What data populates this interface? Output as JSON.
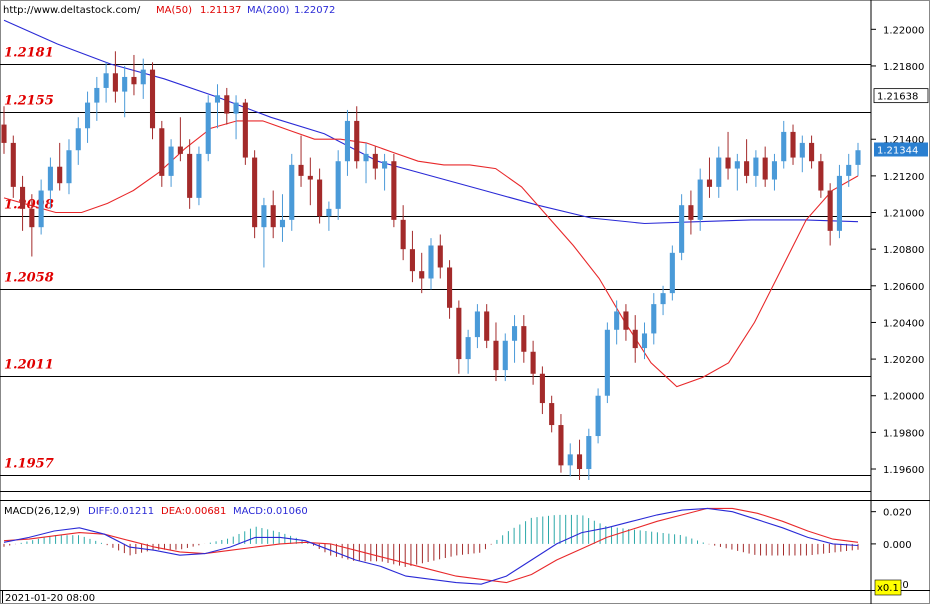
{
  "header": {
    "url": "http://www.deltastock.com/",
    "ma50_label": "MA(50)",
    "ma50_value": "1.21137",
    "ma200_label": "MA(200)",
    "ma200_value": "1.22072"
  },
  "colors": {
    "bull": "#4a9ad8",
    "bear": "#a32a2a",
    "ma50": "#e8282a",
    "ma200": "#2a2ad6",
    "level_text": "#e00000",
    "price_box": "#2a7fd0",
    "macd_diff": "#2a2ad6",
    "macd_dea": "#e8282a",
    "hist_pos": "#2aa8a8",
    "hist_neg": "#a32a2a"
  },
  "price_axis": {
    "ticks": [
      "1.22000",
      "1.21800",
      "1.21638",
      "1.21400",
      "1.21344",
      "1.21200",
      "1.21000",
      "1.20800",
      "1.20600",
      "1.20400",
      "1.20200",
      "1.20000",
      "1.19800",
      "1.19600"
    ],
    "tick_values": [
      1.22,
      1.218,
      null,
      1.214,
      null,
      1.212,
      1.21,
      1.208,
      1.206,
      1.204,
      1.202,
      1.2,
      1.198,
      1.196
    ],
    "marker_line": "1.21638",
    "current_price": "1.21344",
    "ylim": [
      1.1948,
      1.2216
    ]
  },
  "levels": [
    {
      "label": "1.2181",
      "value": 1.2181
    },
    {
      "label": "1.2155",
      "value": 1.2155
    },
    {
      "label": "1.2098",
      "value": 1.2098
    },
    {
      "label": "1.2058",
      "value": 1.2058
    },
    {
      "label": "1.2011",
      "value": 1.2011
    },
    {
      "label": "1.1957",
      "value": 1.1957
    }
  ],
  "macd": {
    "title": "MACD(26,12,9)",
    "diff_label": "DIFF:0.01211",
    "dea_label": "DEA:0.00681",
    "macd_label": "MACD:0.01060",
    "ticks": [
      "0.020",
      "0.000"
    ],
    "tick_values": [
      0.02,
      0.0
    ],
    "ylim": [
      -0.028,
      0.026
    ],
    "corner_badge": "x0.1",
    "partial_tick": "20"
  },
  "time_axis": {
    "label": "2021-01-20 08:00"
  },
  "chart_data": {
    "type": "candlestick",
    "candles": [
      [
        1.2148,
        1.2158,
        1.2132,
        1.2138
      ],
      [
        1.2138,
        1.2142,
        1.2108,
        1.2114
      ],
      [
        1.2114,
        1.212,
        1.209,
        1.2102
      ],
      [
        1.2102,
        1.211,
        1.2076,
        1.2092
      ],
      [
        1.2092,
        1.2118,
        1.2088,
        1.2112
      ],
      [
        1.2112,
        1.213,
        1.2102,
        1.2125
      ],
      [
        1.2125,
        1.2138,
        1.2112,
        1.2116
      ],
      [
        1.2116,
        1.214,
        1.211,
        1.2134
      ],
      [
        1.2134,
        1.2152,
        1.2126,
        1.2146
      ],
      [
        1.2146,
        1.2166,
        1.2138,
        1.216
      ],
      [
        1.216,
        1.2174,
        1.215,
        1.2168
      ],
      [
        1.2168,
        1.2182,
        1.216,
        1.2176
      ],
      [
        1.2176,
        1.2188,
        1.216,
        1.2166
      ],
      [
        1.2166,
        1.218,
        1.2152,
        1.2174
      ],
      [
        1.2174,
        1.2186,
        1.2164,
        1.217
      ],
      [
        1.217,
        1.2184,
        1.2162,
        1.2178
      ],
      [
        1.2178,
        1.2182,
        1.214,
        1.2146
      ],
      [
        1.2146,
        1.215,
        1.2114,
        1.212
      ],
      [
        1.212,
        1.214,
        1.2114,
        1.2136
      ],
      [
        1.2136,
        1.2152,
        1.2128,
        1.2132
      ],
      [
        1.2132,
        1.214,
        1.2102,
        1.2108
      ],
      [
        1.2108,
        1.2136,
        1.2104,
        1.2132
      ],
      [
        1.2132,
        1.2164,
        1.2128,
        1.216
      ],
      [
        1.216,
        1.217,
        1.2146,
        1.2164
      ],
      [
        1.2164,
        1.2168,
        1.2148,
        1.2154
      ],
      [
        1.2154,
        1.2164,
        1.214,
        1.216
      ],
      [
        1.216,
        1.2162,
        1.2126,
        1.213
      ],
      [
        1.213,
        1.2134,
        1.2086,
        1.2092
      ],
      [
        1.2092,
        1.2108,
        1.207,
        1.2104
      ],
      [
        1.2104,
        1.2112,
        1.2086,
        1.2092
      ],
      [
        1.2092,
        1.211,
        1.2084,
        1.2096
      ],
      [
        1.2096,
        1.2132,
        1.209,
        1.2126
      ],
      [
        1.2126,
        1.2142,
        1.2114,
        1.212
      ],
      [
        1.212,
        1.213,
        1.2104,
        1.2118
      ],
      [
        1.2118,
        1.2124,
        1.2094,
        1.2098
      ],
      [
        1.2098,
        1.2106,
        1.209,
        1.2102
      ],
      [
        1.2102,
        1.2134,
        1.2096,
        1.2128
      ],
      [
        1.2128,
        1.2156,
        1.212,
        1.215
      ],
      [
        1.215,
        1.2158,
        1.2124,
        1.2128
      ],
      [
        1.2128,
        1.2138,
        1.2116,
        1.2132
      ],
      [
        1.2132,
        1.2136,
        1.2118,
        1.2124
      ],
      [
        1.2124,
        1.2132,
        1.2112,
        1.2128
      ],
      [
        1.2128,
        1.2132,
        1.2092,
        1.2096
      ],
      [
        1.2096,
        1.2104,
        1.2074,
        1.208
      ],
      [
        1.208,
        1.209,
        1.2062,
        1.2068
      ],
      [
        1.2068,
        1.2078,
        1.2056,
        1.2064
      ],
      [
        1.2064,
        1.2086,
        1.2058,
        1.2082
      ],
      [
        1.2082,
        1.2088,
        1.2064,
        1.207
      ],
      [
        1.207,
        1.2074,
        1.2042,
        1.2048
      ],
      [
        1.2048,
        1.2052,
        1.2012,
        1.202
      ],
      [
        1.202,
        1.2036,
        1.2012,
        1.2032
      ],
      [
        1.2032,
        1.205,
        1.2026,
        1.2046
      ],
      [
        1.2046,
        1.205,
        1.2026,
        1.203
      ],
      [
        1.203,
        1.204,
        1.2008,
        1.2014
      ],
      [
        1.2014,
        1.2034,
        1.2008,
        1.203
      ],
      [
        1.203,
        1.2044,
        1.2018,
        1.2038
      ],
      [
        1.2038,
        1.2044,
        1.2018,
        1.2024
      ],
      [
        1.2024,
        1.203,
        1.2006,
        1.2012
      ],
      [
        1.2012,
        1.2016,
        1.199,
        1.1996
      ],
      [
        1.1996,
        1.2,
        1.198,
        1.1984
      ],
      [
        1.1984,
        1.199,
        1.1958,
        1.1962
      ],
      [
        1.1962,
        1.1974,
        1.1956,
        1.1968
      ],
      [
        1.1968,
        1.1976,
        1.1954,
        1.196
      ],
      [
        1.196,
        1.1982,
        1.1954,
        1.1978
      ],
      [
        1.1978,
        1.2004,
        1.1974,
        1.2
      ],
      [
        1.2,
        1.204,
        1.1996,
        1.2036
      ],
      [
        1.2036,
        1.2052,
        1.2028,
        1.2046
      ],
      [
        1.2046,
        1.205,
        1.203,
        1.2036
      ],
      [
        1.2036,
        1.2044,
        1.2018,
        1.2026
      ],
      [
        1.2026,
        1.204,
        1.202,
        1.2034
      ],
      [
        1.2034,
        1.2056,
        1.2028,
        1.205
      ],
      [
        1.205,
        1.206,
        1.2044,
        1.2056
      ],
      [
        1.2056,
        1.2082,
        1.2052,
        1.2078
      ],
      [
        1.2078,
        1.211,
        1.2074,
        1.2104
      ],
      [
        1.2104,
        1.2112,
        1.2088,
        1.2096
      ],
      [
        1.2096,
        1.2124,
        1.209,
        1.2118
      ],
      [
        1.2118,
        1.213,
        1.2108,
        1.2114
      ],
      [
        1.2114,
        1.2136,
        1.2108,
        1.213
      ],
      [
        1.213,
        1.2144,
        1.2118,
        1.2124
      ],
      [
        1.2124,
        1.2132,
        1.2112,
        1.2128
      ],
      [
        1.2128,
        1.214,
        1.2116,
        1.212
      ],
      [
        1.212,
        1.2134,
        1.2114,
        1.213
      ],
      [
        1.213,
        1.2136,
        1.2114,
        1.2118
      ],
      [
        1.2118,
        1.2132,
        1.2112,
        1.2128
      ],
      [
        1.2128,
        1.215,
        1.2124,
        1.2144
      ],
      [
        1.2144,
        1.2148,
        1.2126,
        1.213
      ],
      [
        1.213,
        1.2142,
        1.2122,
        1.2138
      ],
      [
        1.2138,
        1.2142,
        1.2124,
        1.2128
      ],
      [
        1.2128,
        1.2132,
        1.2108,
        1.2112
      ],
      [
        1.2112,
        1.2116,
        1.2082,
        1.209
      ],
      [
        1.209,
        1.2126,
        1.2086,
        1.212
      ],
      [
        1.212,
        1.2132,
        1.2114,
        1.2126
      ],
      [
        1.2126,
        1.2138,
        1.212,
        1.2134
      ]
    ],
    "ma50": [
      1.2108,
      1.2104,
      1.21,
      1.21,
      1.2105,
      1.2112,
      1.2122,
      1.2135,
      1.2146,
      1.215,
      1.215,
      1.2145,
      1.214,
      1.214,
      1.2138,
      1.2133,
      1.2128,
      1.2126,
      1.2126,
      1.2124,
      1.2114,
      1.2098,
      1.2082,
      1.2064,
      1.204,
      1.2018,
      1.2005,
      1.201,
      1.2018,
      1.204,
      1.2068,
      1.2096,
      1.2112,
      1.212
    ],
    "ma200": [
      1.2205,
      1.2192,
      1.2181,
      1.2173,
      1.2163,
      1.2152,
      1.2143,
      1.2128,
      1.212,
      1.2112,
      1.2104,
      1.2097,
      1.2094,
      1.2095,
      1.2096,
      1.2096,
      1.2095
    ],
    "macd_diff": [
      0.001,
      0.004,
      0.008,
      0.01,
      0.006,
      -0.002,
      -0.004,
      -0.007,
      -0.006,
      -0.002,
      0.004,
      0.004,
      0.002,
      -0.004,
      -0.01,
      -0.014,
      -0.02,
      -0.022,
      -0.024,
      -0.025,
      -0.02,
      -0.01,
      0.0,
      0.007,
      0.01,
      0.014,
      0.018,
      0.021,
      0.022,
      0.02,
      0.015,
      0.01,
      0.004,
      0.0,
      -0.001
    ],
    "macd_dea": [
      0.002,
      0.003,
      0.005,
      0.007,
      0.006,
      0.002,
      -0.002,
      -0.005,
      -0.006,
      -0.004,
      -0.002,
      0.0,
      0.001,
      0.0,
      -0.004,
      -0.008,
      -0.012,
      -0.016,
      -0.02,
      -0.022,
      -0.024,
      -0.019,
      -0.01,
      -0.003,
      0.004,
      0.009,
      0.014,
      0.018,
      0.022,
      0.022,
      0.019,
      0.014,
      0.008,
      0.003,
      0.001
    ]
  }
}
